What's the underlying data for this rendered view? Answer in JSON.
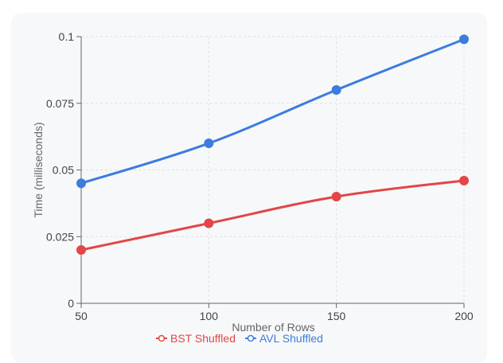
{
  "chart_data": {
    "type": "line",
    "title": "",
    "xlabel": "Number of Rows",
    "ylabel": "Time (milliseconds)",
    "x": [
      50,
      100,
      150,
      200
    ],
    "x_tick_labels": [
      "50",
      "100",
      "150",
      "200"
    ],
    "y_ticks": [
      0,
      0.025,
      0.05,
      0.075,
      0.1
    ],
    "y_tick_labels": [
      "0",
      "0.025",
      "0.05",
      "0.075",
      "0.1"
    ],
    "xlim": [
      50,
      200
    ],
    "ylim": [
      0,
      0.1
    ],
    "grid": true,
    "legend_position": "bottom",
    "series": [
      {
        "name": "BST Shuffled",
        "color": "#e24646",
        "values": [
          0.02,
          0.03,
          0.04,
          0.046
        ]
      },
      {
        "name": "AVL Shuffled",
        "color": "#3b7ddd",
        "values": [
          0.045,
          0.06,
          0.08,
          0.099
        ]
      }
    ]
  }
}
